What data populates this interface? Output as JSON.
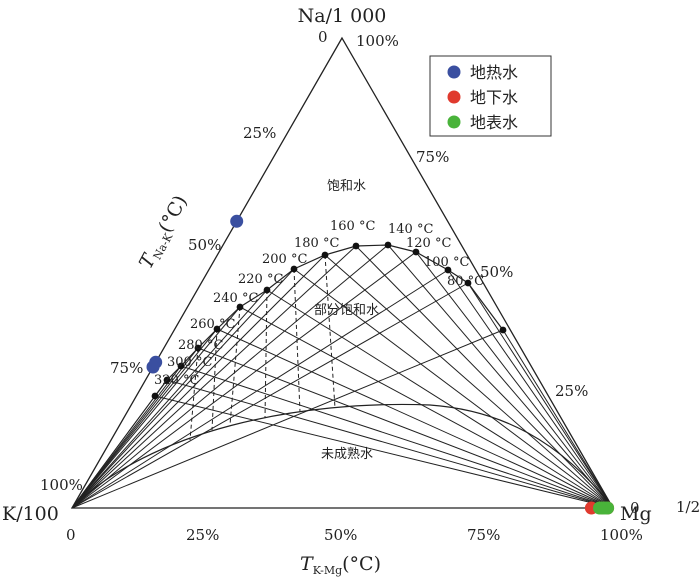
{
  "chart_data": {
    "type": "scatter",
    "subtype": "ternary Na-K-Mg (Giggenbach)",
    "vertices": {
      "top": "Na/1 000",
      "left": "K/100",
      "right": "Mg",
      "right_sup": "1/2"
    },
    "axis_na_k_label": {
      "main": "T",
      "sub": "Na-K",
      "unit": "(°C)"
    },
    "axis_k_mg_label": {
      "main": "T",
      "sub": "K-Mg",
      "unit": "(°C)"
    },
    "left_edge_ticks": [
      "25%",
      "50%",
      "75%",
      "100%"
    ],
    "right_edge_ticks": [
      "0",
      "100%",
      "75%",
      "50%",
      "25%",
      "0"
    ],
    "bottom_ticks": [
      "0",
      "25%",
      "50%",
      "75%",
      "100%"
    ],
    "regions": {
      "full_equilibrium": "饱和水",
      "partial_equilibrium": "部分饱和水",
      "immature": "未成熟水"
    },
    "temperatures": [
      "320 °C",
      "300 °C",
      "280 °C",
      "260 °C",
      "240 °C",
      "220 °C",
      "200 °C",
      "180 °C",
      "160 °C",
      "140 °C",
      "120 °C",
      "100 °C",
      "80 °C"
    ],
    "series": [
      {
        "name": "地热水",
        "color": "#3a4fa0",
        "points": [
          [
            0.61,
            0.39,
            0.0
          ],
          [
            0.31,
            0.69,
            0.0
          ],
          [
            0.3,
            0.7,
            0.0
          ]
        ]
      },
      {
        "name": "地下水",
        "color": "#e03a2e",
        "points": [
          [
            0.0,
            0.04,
            0.96
          ],
          [
            0.0,
            0.02,
            0.98
          ],
          [
            0.0,
            0.01,
            0.99
          ]
        ]
      },
      {
        "name": "地表水",
        "color": "#49b33a",
        "points": [
          [
            0.0,
            0.01,
            0.99
          ],
          [
            0.0,
            0.015,
            0.985
          ],
          [
            0.0,
            0.02,
            0.98
          ],
          [
            0.0,
            0.025,
            0.975
          ]
        ]
      }
    ]
  }
}
